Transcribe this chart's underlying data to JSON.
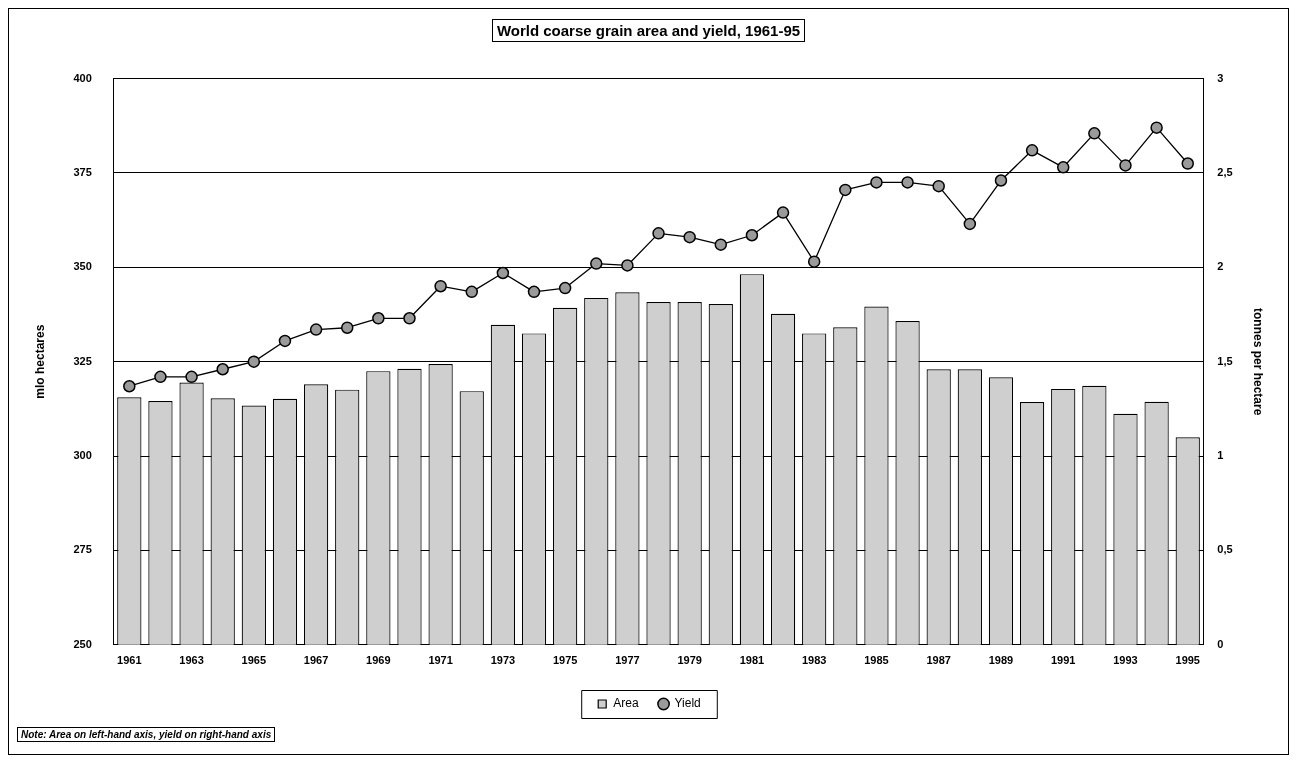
{
  "chart_data": {
    "type": "bar",
    "title": "World coarse grain area and yield, 1961-95",
    "ylabel": "mlo hectares",
    "y2label": "tonnes per hectare",
    "annotations": [
      "Note: Area on left-hand axis, yield on right-hand axis"
    ],
    "categories": [
      "1961",
      null,
      "1963",
      null,
      "1965",
      null,
      "1967",
      null,
      "1969",
      null,
      "1971",
      null,
      "1973",
      null,
      "1975",
      null,
      "1977",
      null,
      "1979",
      null,
      "1981",
      null,
      "1983",
      null,
      "1985",
      null,
      "1987",
      null,
      "1989",
      null,
      "1991",
      null,
      "1993",
      null,
      "1995"
    ],
    "series": [
      {
        "name": "Area",
        "color": "#cfcfcf",
        "values": [
          315.6,
          314.6,
          319.5,
          315.3,
          313.4,
          315.2,
          319.0,
          317.6,
          322.5,
          323.1,
          324.4,
          317.2,
          334.8,
          332.5,
          339.3,
          341.9,
          343.4,
          340.8,
          340.8,
          340.3,
          348.2,
          337.7,
          332.5,
          334.1,
          339.6,
          335.8,
          323.0,
          323.0,
          320.9,
          314.3,
          317.8,
          318.6,
          311.2,
          314.4,
          305.0
        ]
      },
      {
        "name": "Yield",
        "type": "line",
        "axis": "y2",
        "color": "#000000",
        "values": [
          1.37,
          1.42,
          1.42,
          1.46,
          1.5,
          1.61,
          1.67,
          1.68,
          1.73,
          1.73,
          1.9,
          1.87,
          1.97,
          1.87,
          1.89,
          2.02,
          2.01,
          2.18,
          2.16,
          2.12,
          2.17,
          2.29,
          2.03,
          2.41,
          2.45,
          2.45,
          2.43,
          2.23,
          2.46,
          2.62,
          2.53,
          2.71,
          2.54,
          2.74,
          2.55
        ]
      }
    ],
    "ylim": [
      250,
      400
    ],
    "yticks": [
      250,
      275,
      300,
      325,
      350,
      375,
      400
    ],
    "y2lim": [
      0,
      3
    ],
    "y2ticks": [
      0,
      {
        "value": 0.5,
        "label": "0,5"
      },
      1,
      {
        "value": 1.5,
        "label": "1,5"
      },
      2,
      {
        "value": 2.5,
        "label": "2,5"
      },
      3
    ],
    "grid": "y",
    "legend": "bottom",
    "marker": "circle",
    "line_style": "solid"
  }
}
